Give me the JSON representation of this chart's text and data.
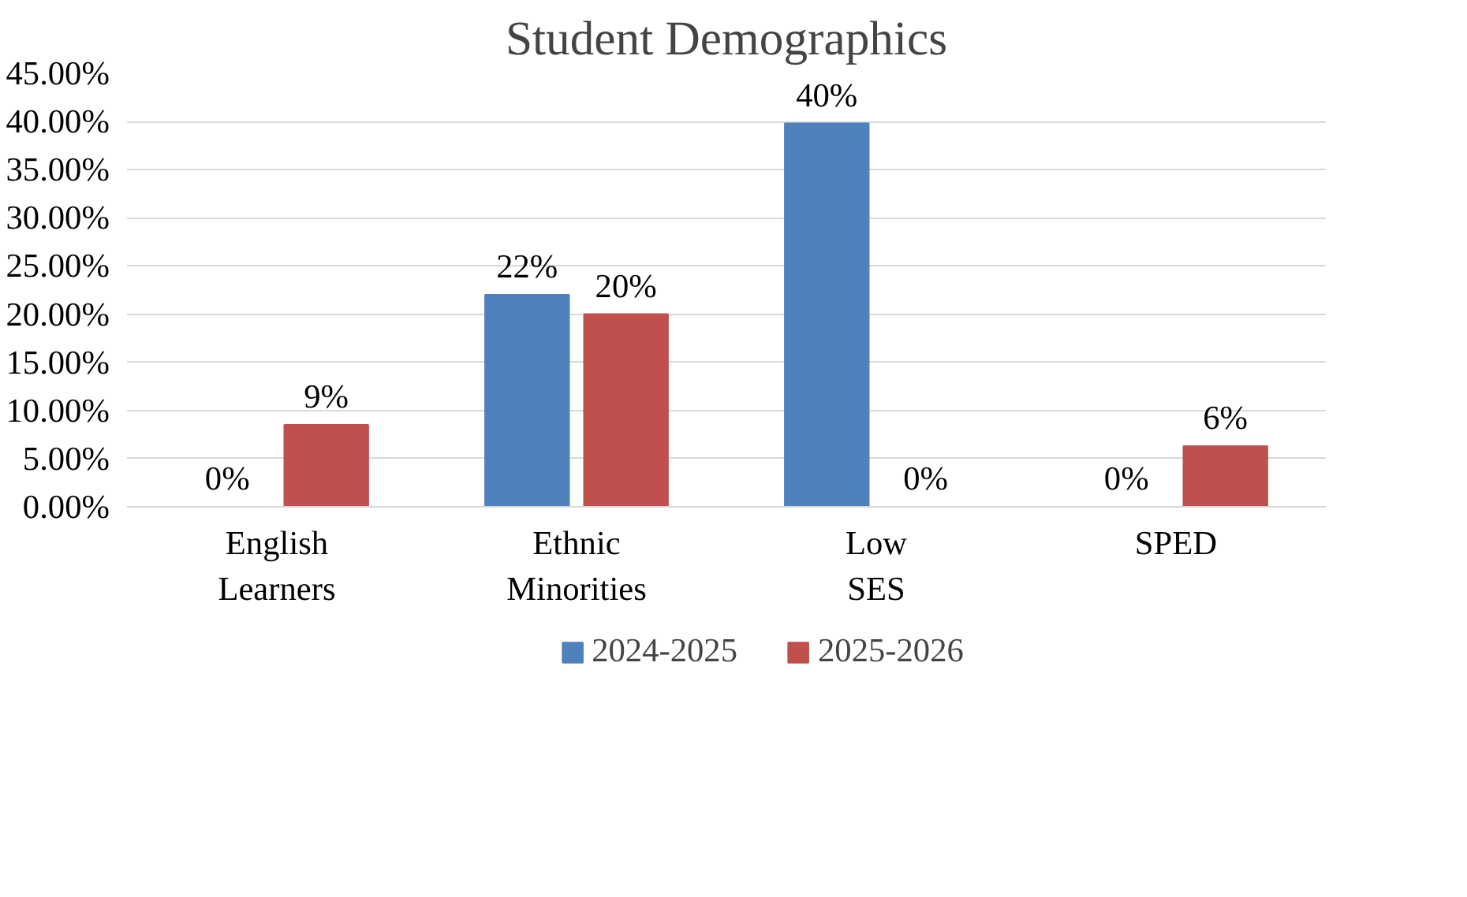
{
  "chart_data": {
    "type": "bar",
    "title": "Student Demographics",
    "categories": [
      "English Learners",
      "Ethnic Minorities",
      "Low SES",
      "SPED"
    ],
    "series": [
      {
        "name": "2024-2025",
        "color": "#4f81bd",
        "values": [
          0,
          22,
          39.8,
          0
        ],
        "value_labels": [
          "0%",
          "22%",
          "40%",
          "0%"
        ]
      },
      {
        "name": "2025-2026",
        "color": "#c0504d",
        "values": [
          8.5,
          20,
          0,
          6.3
        ],
        "value_labels": [
          "9%",
          "20%",
          "0%",
          "6%"
        ]
      }
    ],
    "ylim": [
      0,
      45
    ],
    "yticks": [
      {
        "value": 0,
        "label": "0.00%"
      },
      {
        "value": 5,
        "label": "5.00%"
      },
      {
        "value": 10,
        "label": "10.00%"
      },
      {
        "value": 15,
        "label": "15.00%"
      },
      {
        "value": 20,
        "label": "20.00%"
      },
      {
        "value": 25,
        "label": "25.00%"
      },
      {
        "value": 30,
        "label": "30.00%"
      },
      {
        "value": 35,
        "label": "35.00%"
      },
      {
        "value": 40,
        "label": "40.00%"
      },
      {
        "value": 45,
        "label": "45.00%"
      }
    ],
    "grid": "y",
    "legend": "bottom"
  }
}
